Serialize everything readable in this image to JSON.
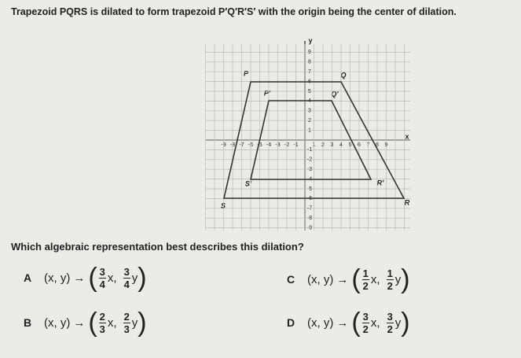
{
  "question": "Trapezoid PQRS is dilated to form trapezoid P′Q′R′S′ with the origin being the center of dilation.",
  "graph": {
    "x_label": "x",
    "y_label": "y",
    "x_ticks": [
      -9,
      -8,
      -7,
      -6,
      -5,
      -4,
      -3,
      -2,
      -1,
      1,
      2,
      3,
      4,
      5,
      6,
      7,
      8,
      9
    ],
    "y_ticks": [
      9,
      8,
      7,
      6,
      5,
      4,
      3,
      2,
      1,
      -1,
      -2,
      -3,
      -4,
      -5,
      -6,
      -7,
      -8,
      -9
    ],
    "vertices": {
      "P": "P",
      "Q": "Q",
      "R": "R",
      "S": "S",
      "P2": "P′",
      "Q2": "Q′",
      "R2": "R′",
      "S2": "S′"
    }
  },
  "prompt": "Which algebraic representation best describes this dilation?",
  "choices": [
    {
      "letter": "A",
      "lhs": "(x, y)",
      "arrow": "→",
      "x_num": "3",
      "x_den": "4",
      "x_var": "x,",
      "y_num": "3",
      "y_den": "4",
      "y_var": "y"
    },
    {
      "letter": "B",
      "lhs": "(x, y)",
      "arrow": "→",
      "x_num": "2",
      "x_den": "3",
      "x_var": "x,",
      "y_num": "2",
      "y_den": "3",
      "y_var": "y"
    },
    {
      "letter": "C",
      "lhs": "(x, y)",
      "arrow": "→",
      "x_num": "1",
      "x_den": "2",
      "x_var": "x,",
      "y_num": "1",
      "y_den": "2",
      "y_var": "y"
    },
    {
      "letter": "D",
      "lhs": "(x, y)",
      "arrow": "→",
      "x_num": "3",
      "x_den": "2",
      "x_var": "x,",
      "y_num": "3",
      "y_den": "2",
      "y_var": "y"
    }
  ]
}
